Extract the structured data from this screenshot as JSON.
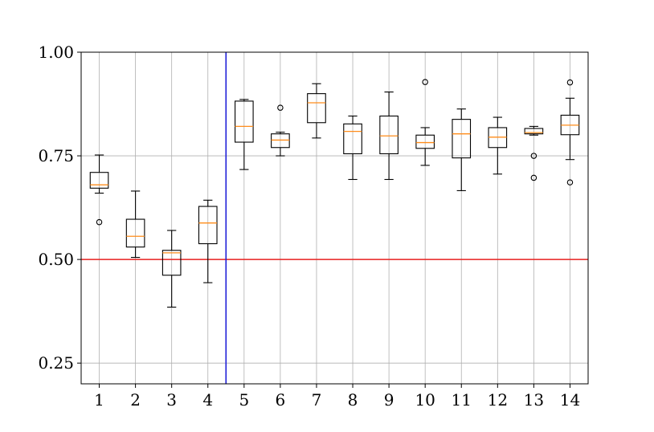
{
  "chart_data": {
    "type": "boxplot",
    "title": "",
    "xlabel": "",
    "ylabel": "",
    "ylim": [
      0.2,
      1.0
    ],
    "yticks": [
      0.25,
      0.5,
      0.75,
      1.0
    ],
    "ytick_labels": [
      "0.25",
      "0.50",
      "0.75",
      "1.00"
    ],
    "categories": [
      "1",
      "2",
      "3",
      "4",
      "5",
      "6",
      "7",
      "8",
      "9",
      "10",
      "11",
      "12",
      "13",
      "14"
    ],
    "grid": true,
    "reference_lines": {
      "horizontal": {
        "y": 0.5,
        "color": "#e8211f"
      },
      "vertical": {
        "x_between": [
          "4",
          "5"
        ],
        "color": "#1f1fd8"
      }
    },
    "median_color": "#ff8c1a",
    "boxes": [
      {
        "category": "1",
        "whisker_low": 0.66,
        "q1": 0.672,
        "median": 0.68,
        "q3": 0.71,
        "whisker_high": 0.752,
        "outliers": [
          0.59
        ]
      },
      {
        "category": "2",
        "whisker_low": 0.505,
        "q1": 0.53,
        "median": 0.556,
        "q3": 0.597,
        "whisker_high": 0.665,
        "outliers": []
      },
      {
        "category": "3",
        "whisker_low": 0.385,
        "q1": 0.462,
        "median": 0.516,
        "q3": 0.522,
        "whisker_high": 0.57,
        "outliers": []
      },
      {
        "category": "4",
        "whisker_low": 0.444,
        "q1": 0.538,
        "median": 0.588,
        "q3": 0.628,
        "whisker_high": 0.643,
        "outliers": []
      },
      {
        "category": "5",
        "whisker_low": 0.717,
        "q1": 0.783,
        "median": 0.821,
        "q3": 0.882,
        "whisker_high": 0.886,
        "outliers": []
      },
      {
        "category": "6",
        "whisker_low": 0.75,
        "q1": 0.77,
        "median": 0.788,
        "q3": 0.803,
        "whisker_high": 0.807,
        "outliers": [
          0.866
        ]
      },
      {
        "category": "7",
        "whisker_low": 0.793,
        "q1": 0.83,
        "median": 0.878,
        "q3": 0.9,
        "whisker_high": 0.924,
        "outliers": []
      },
      {
        "category": "8",
        "whisker_low": 0.693,
        "q1": 0.755,
        "median": 0.809,
        "q3": 0.827,
        "whisker_high": 0.846,
        "outliers": []
      },
      {
        "category": "9",
        "whisker_low": 0.693,
        "q1": 0.755,
        "median": 0.798,
        "q3": 0.846,
        "whisker_high": 0.904,
        "outliers": []
      },
      {
        "category": "10",
        "whisker_low": 0.727,
        "q1": 0.768,
        "median": 0.782,
        "q3": 0.8,
        "whisker_high": 0.818,
        "outliers": [
          0.928
        ]
      },
      {
        "category": "11",
        "whisker_low": 0.666,
        "q1": 0.745,
        "median": 0.803,
        "q3": 0.838,
        "whisker_high": 0.863,
        "outliers": []
      },
      {
        "category": "12",
        "whisker_low": 0.706,
        "q1": 0.77,
        "median": 0.795,
        "q3": 0.818,
        "whisker_high": 0.843,
        "outliers": []
      },
      {
        "category": "13",
        "whisker_low": 0.8,
        "q1": 0.803,
        "median": 0.806,
        "q3": 0.816,
        "whisker_high": 0.821,
        "outliers": [
          0.75,
          0.697
        ]
      },
      {
        "category": "14",
        "whisker_low": 0.741,
        "q1": 0.801,
        "median": 0.824,
        "q3": 0.848,
        "whisker_high": 0.889,
        "outliers": [
          0.927,
          0.686
        ]
      }
    ]
  }
}
